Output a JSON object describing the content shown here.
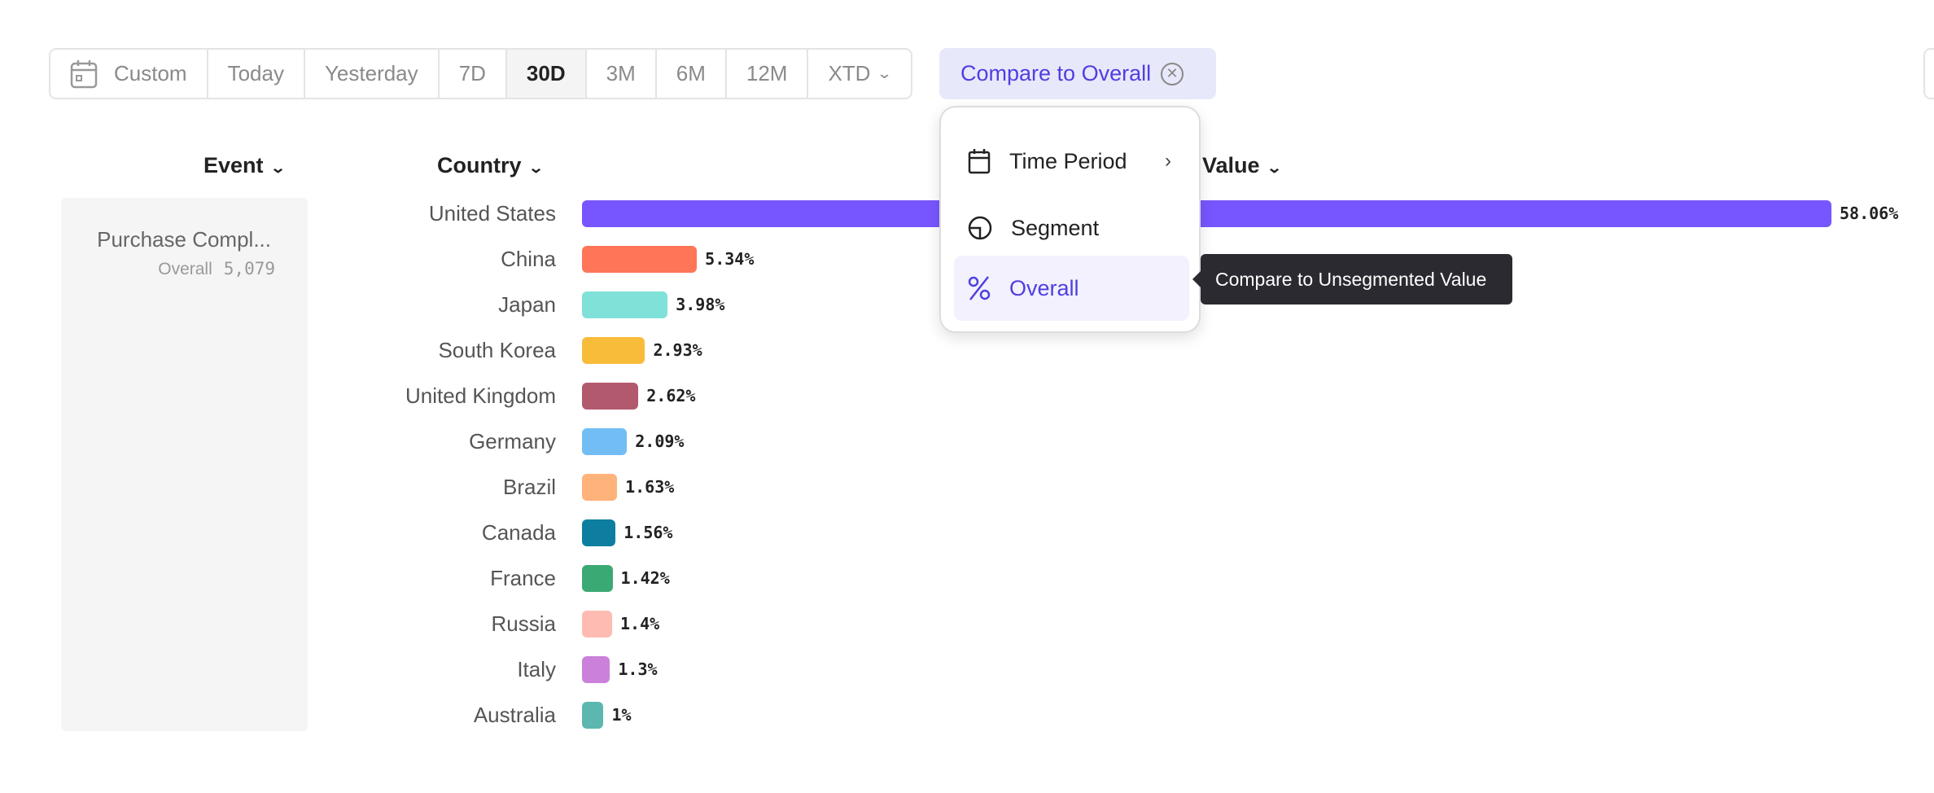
{
  "toolbar": {
    "ranges": [
      "Custom",
      "Today",
      "Yesterday",
      "7D",
      "30D",
      "3M",
      "6M",
      "12M",
      "XTD"
    ],
    "active": "30D"
  },
  "compare": {
    "label": "Compare to Overall"
  },
  "headers": {
    "event": "Event",
    "country": "Country",
    "value": "Value"
  },
  "event": {
    "name": "Purchase Compl...",
    "sub_label": "Overall",
    "sub_value": "5,079"
  },
  "menu": {
    "items": [
      {
        "label": "Time Period",
        "icon": "calendar-icon"
      },
      {
        "label": "Segment",
        "icon": "segment-icon"
      },
      {
        "label": "Overall",
        "icon": "percent-icon"
      }
    ]
  },
  "tooltip": {
    "text": "Compare to Unsegmented Value"
  },
  "chart_data": {
    "type": "bar",
    "orientation": "horizontal",
    "categories": [
      "United States",
      "China",
      "Japan",
      "South Korea",
      "United Kingdom",
      "Germany",
      "Brazil",
      "Canada",
      "France",
      "Russia",
      "Italy",
      "Australia"
    ],
    "values": [
      58.06,
      5.34,
      3.98,
      2.93,
      2.62,
      2.09,
      1.63,
      1.56,
      1.42,
      1.4,
      1.3,
      1
    ],
    "labels": [
      "58.06%",
      "5.34%",
      "3.98%",
      "2.93%",
      "2.62%",
      "2.09%",
      "1.63%",
      "1.56%",
      "1.42%",
      "1.4%",
      "1.3%",
      "1%"
    ],
    "colors": [
      "#7856ff",
      "#ff7557",
      "#80e1d9",
      "#f8bc3b",
      "#b2596e",
      "#72bef4",
      "#ffb27a",
      "#0d7ea0",
      "#3ba974",
      "#febbb2",
      "#cb80dc",
      "#5bb7af"
    ]
  }
}
